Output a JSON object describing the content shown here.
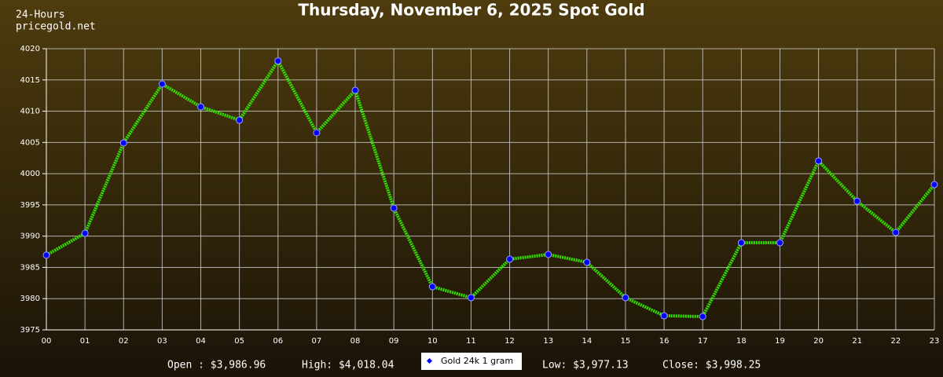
{
  "chart_data": {
    "type": "line",
    "title": "Thursday, November 6, 2025 Spot Gold",
    "corner_label": [
      "24-Hours",
      "pricegold.net"
    ],
    "categories": [
      "00",
      "01",
      "02",
      "03",
      "04",
      "05",
      "06",
      "07",
      "08",
      "09",
      "10",
      "11",
      "12",
      "13",
      "14",
      "15",
      "16",
      "17",
      "18",
      "19",
      "20",
      "21",
      "22",
      "23"
    ],
    "series": [
      {
        "name": "Gold 24k 1 gram",
        "color": "#33e000",
        "marker_color": "#0000ff",
        "values": [
          3986.96,
          3990.46,
          4004.92,
          4014.34,
          4010.7,
          4008.56,
          4018.04,
          4006.55,
          4013.34,
          3994.48,
          3981.91,
          3980.15,
          3986.31,
          3987.07,
          3985.81,
          3980.15,
          3977.26,
          3977.13,
          3988.95,
          3988.95,
          4002.03,
          3995.6,
          3990.59,
          3998.25
        ]
      }
    ],
    "ylim": [
      3975,
      4020
    ],
    "yticks": [
      3975,
      3980,
      3985,
      3990,
      3995,
      4000,
      4005,
      4010,
      4015,
      4020
    ],
    "grid": true,
    "summary": {
      "open": "Open : $3,986.96",
      "high": "High: $4,018.04",
      "low": "Low: $3,977.13",
      "close": "Close: $3,998.25"
    }
  }
}
